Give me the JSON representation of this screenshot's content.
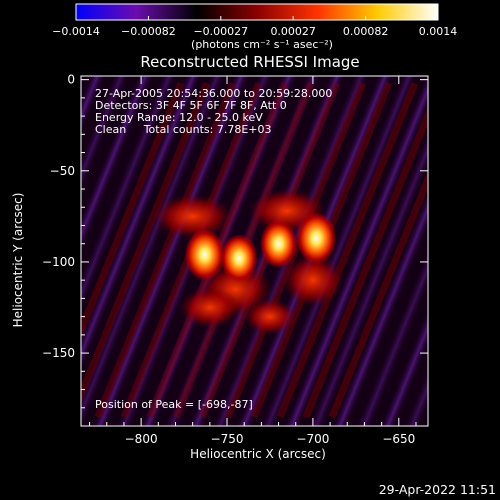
{
  "chart_data": {
    "type": "heatmap",
    "title": "Reconstructed RHESSI Image",
    "xlabel": "Heliocentric X (arcsec)",
    "ylabel": "Heliocentric Y (arcsec)",
    "xlim": [
      -835,
      -633
    ],
    "ylim": [
      -190,
      2
    ],
    "xticks": [
      -800,
      -750,
      -700,
      -650
    ],
    "yticks": [
      0,
      -50,
      -100,
      -150
    ],
    "xtick_labels": [
      "−800",
      "−750",
      "−700",
      "−650"
    ],
    "ytick_labels": [
      "0",
      "−50",
      "−100",
      "−150"
    ],
    "colorbar": {
      "range": [
        -0.0014,
        0.0014
      ],
      "ticks": [
        "−0.0014",
        "−0.00082",
        "−0.00027",
        "0.00027",
        "0.00082",
        "0.0014"
      ],
      "label": "(photons cm⁻² s⁻¹ asec⁻²)",
      "colormap": [
        "#0000ff",
        "#6a0dad",
        "#000000",
        "#8b0000",
        "#ff3300",
        "#ffcc00",
        "#ffffff"
      ]
    },
    "annotations": [
      "27-Apr-2005 20:54:36.000 to 20:59:28.000",
      "Detectors: 3F 4F 5F 6F 7F 8F, Att 0",
      "Energy Range: 12.0 - 25.0 keV",
      "Clean     Total counts: 7.78E+03"
    ],
    "peak_label": "Position of Peak = [-698,-87]",
    "sources": [
      {
        "x": -763,
        "y": -96,
        "value": 0.0014
      },
      {
        "x": -743,
        "y": -98,
        "value": 0.0013
      },
      {
        "x": -720,
        "y": -90,
        "value": 0.0013
      },
      {
        "x": -698,
        "y": -87,
        "value": 0.0014
      }
    ]
  },
  "footer": {
    "timestamp": "29-Apr-2022 11:51"
  }
}
